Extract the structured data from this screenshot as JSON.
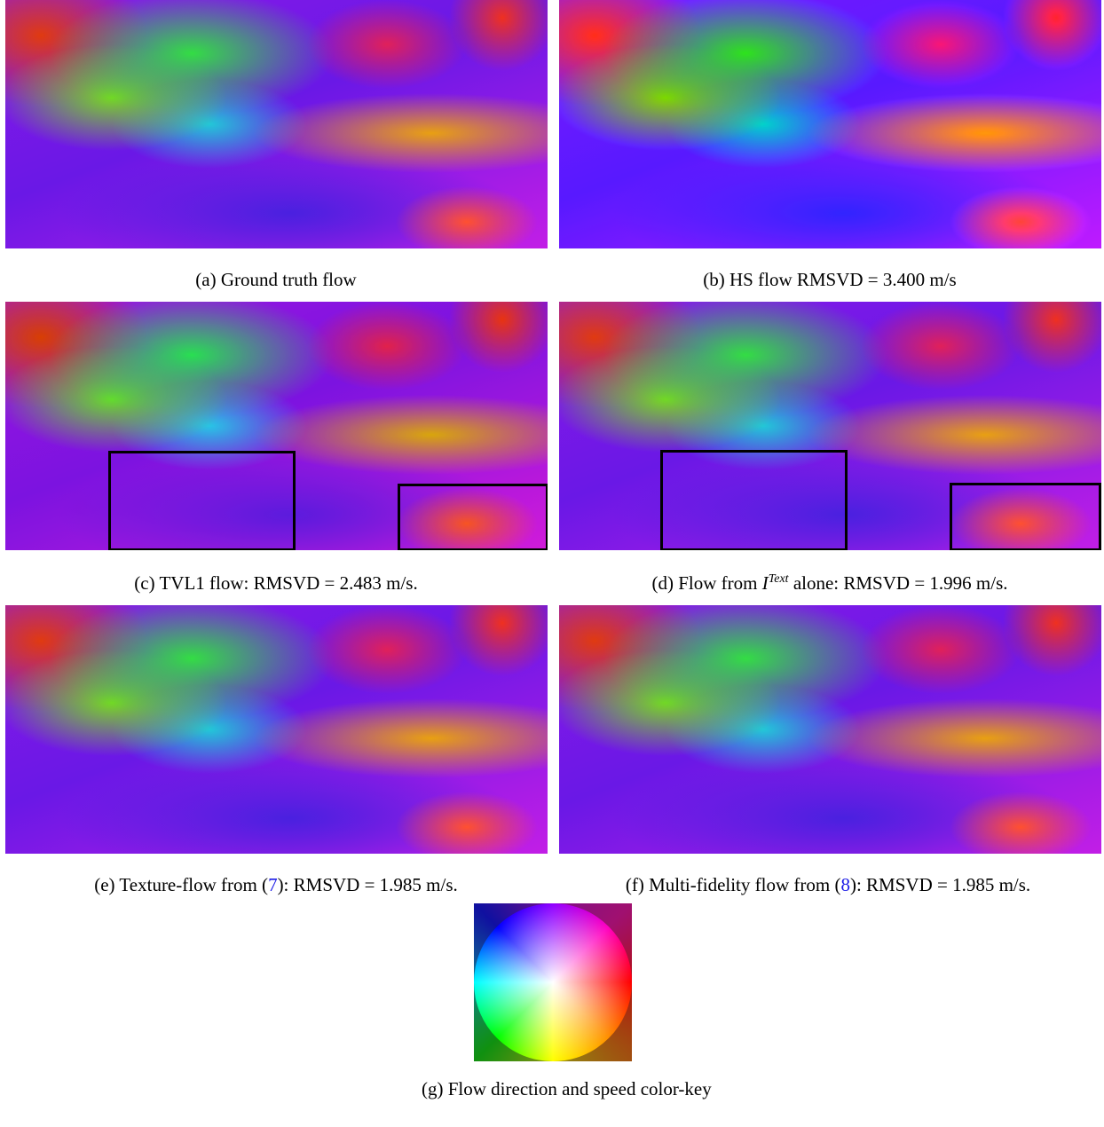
{
  "panels": [
    {
      "label": "(a)",
      "caption": "Ground truth flow"
    },
    {
      "label": "(b)",
      "caption": "HS flow RMSVD = 3.400 m/s"
    },
    {
      "label": "(c)",
      "caption": "TVL1 flow: RMSVD = 2.483 m/s."
    },
    {
      "label": "(d)",
      "caption_before": "Flow from ",
      "math": "I",
      "superscript": "Text",
      "caption_after": " alone: RMSVD = 1.996 m/s."
    },
    {
      "label": "(e)",
      "caption_before": "Texture-flow from (",
      "ref": "7",
      "caption_after": "): RMSVD = 1.985 m/s."
    },
    {
      "label": "(f)",
      "caption_before": "Multi-fidelity flow from (",
      "ref": "8",
      "caption_after": "): RMSVD = 1.985 m/s."
    },
    {
      "label": "(g)",
      "caption": "Flow direction and speed color-key"
    }
  ]
}
